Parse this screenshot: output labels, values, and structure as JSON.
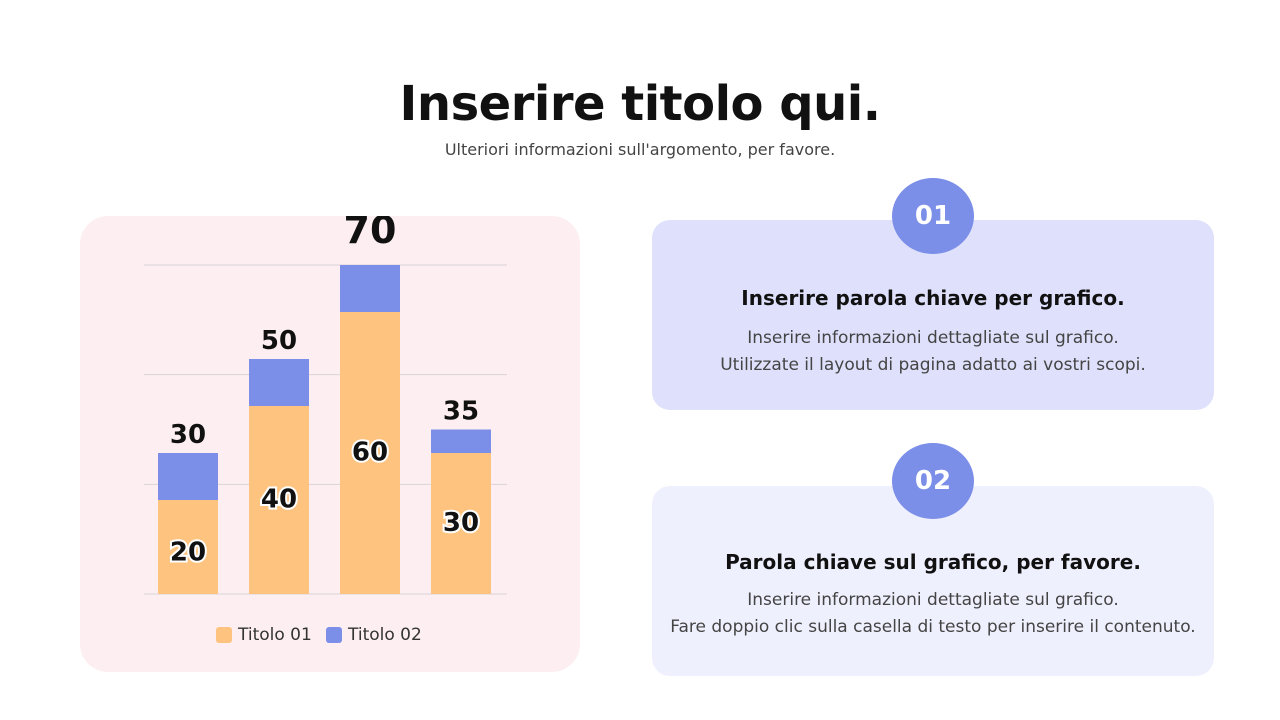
{
  "header": {
    "title": "Inserire titolo qui.",
    "subtitle": "Ulteriori informazioni sull'argomento, per favore."
  },
  "colors": {
    "series1": "#fec37f",
    "series2": "#7b8ee8",
    "chart_bg": "#fdeff1",
    "card1_bg": "#dfe1fc",
    "card2_bg": "#eff0fe"
  },
  "chart_data": {
    "type": "bar",
    "stacked": true,
    "categories": [
      "",
      "",
      "",
      ""
    ],
    "totals": [
      30,
      50,
      70,
      35
    ],
    "series": [
      {
        "name": "Titolo 01",
        "values": [
          20,
          40,
          60,
          30
        ]
      },
      {
        "name": "Titolo 02",
        "values": [
          10,
          10,
          10,
          5
        ]
      }
    ],
    "ylim": [
      0,
      70
    ],
    "grid": true,
    "legend": "bottom"
  },
  "cards": [
    {
      "number": "01",
      "heading": "Inserire parola chiave per grafico.",
      "lines": [
        "Inserire informazioni dettagliate sul grafico.",
        "Utilizzate il layout di pagina adatto ai vostri scopi."
      ]
    },
    {
      "number": "02",
      "heading": "Parola chiave sul grafico, per favore.",
      "lines": [
        "Inserire informazioni dettagliate sul grafico.",
        "Fare doppio clic sulla casella di testo per inserire il contenuto."
      ]
    }
  ]
}
